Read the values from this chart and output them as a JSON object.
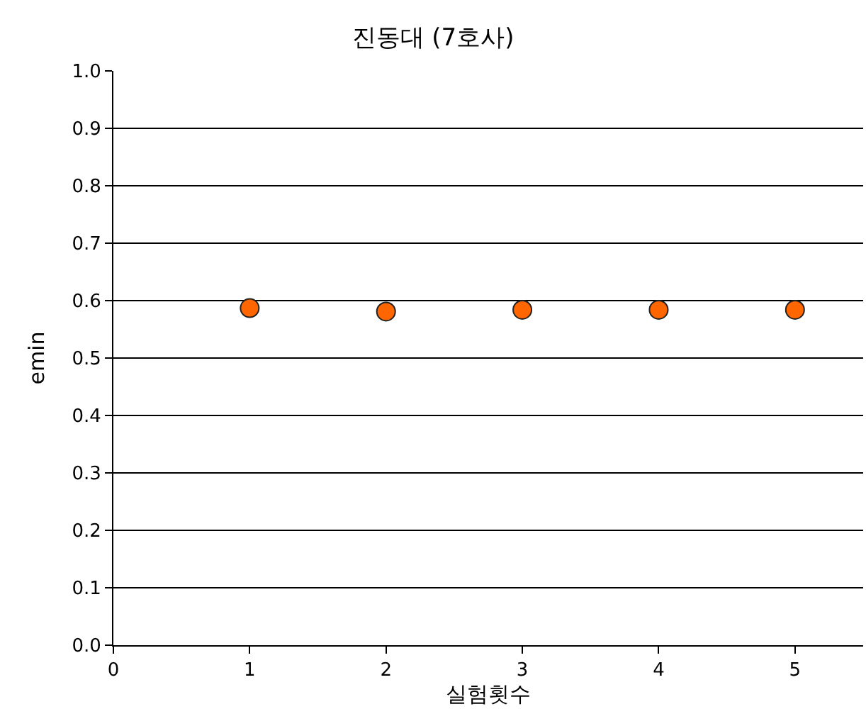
{
  "chart_data": {
    "type": "scatter",
    "title": "진동대 (7호사)",
    "xlabel": "실험횟수",
    "ylabel": "emin",
    "x": [
      1,
      2,
      3,
      4,
      5
    ],
    "series": [
      {
        "color": "#ff6600",
        "values": [
          0.587,
          0.581,
          0.584,
          0.584,
          0.584
        ]
      }
    ],
    "xlim": [
      0,
      5.5
    ],
    "xticks": [
      0,
      1,
      2,
      3,
      4,
      5
    ],
    "ylim": [
      0,
      1
    ],
    "yticks": [
      {
        "value": 0,
        "label": "0.0"
      },
      0.1,
      0.2,
      0.3,
      0.4,
      0.5,
      0.6,
      0.7,
      0.8,
      0.9,
      {
        "value": 1,
        "label": "1.0"
      }
    ],
    "grid": "y",
    "marker": "circle"
  }
}
